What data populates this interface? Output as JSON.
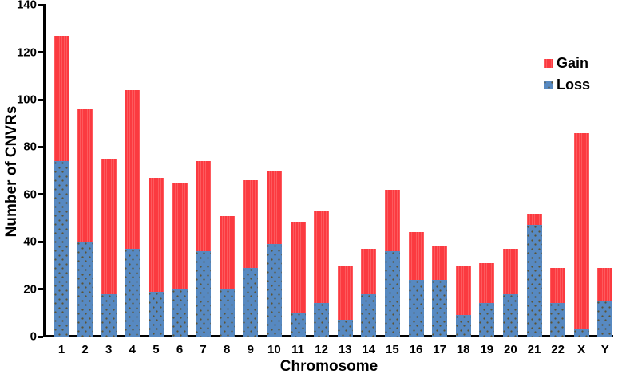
{
  "chart_data": {
    "type": "bar",
    "stacked": true,
    "title": "",
    "xlabel": "Chromosome",
    "ylabel": "Number of CNVRs",
    "categories": [
      "1",
      "2",
      "3",
      "4",
      "5",
      "6",
      "7",
      "8",
      "9",
      "10",
      "11",
      "12",
      "13",
      "14",
      "15",
      "16",
      "17",
      "18",
      "19",
      "20",
      "21",
      "22",
      "X",
      "Y"
    ],
    "series": [
      {
        "name": "Loss",
        "color": "#5789c1",
        "values": [
          74,
          40,
          18,
          37,
          19,
          20,
          36,
          20,
          29,
          39,
          10,
          14,
          7,
          18,
          36,
          24,
          24,
          9,
          14,
          18,
          47,
          14,
          3,
          15
        ]
      },
      {
        "name": "Gain",
        "color": "#fb3a40",
        "values": [
          53,
          56,
          57,
          67,
          48,
          45,
          38,
          31,
          37,
          31,
          38,
          39,
          23,
          19,
          26,
          20,
          14,
          21,
          17,
          19,
          5,
          15,
          83,
          14
        ]
      }
    ],
    "totals": [
      127,
      96,
      75,
      104,
      67,
      65,
      74,
      51,
      66,
      70,
      48,
      53,
      30,
      37,
      62,
      44,
      38,
      30,
      31,
      37,
      52,
      29,
      86,
      29
    ],
    "ylim": [
      0,
      140
    ],
    "yticks": [
      0,
      20,
      40,
      60,
      80,
      100,
      120,
      140
    ],
    "legend_position": "top-right",
    "legend_order": [
      "Gain",
      "Loss"
    ],
    "grid": false,
    "colors": {
      "gain": "#fb3a40",
      "loss": "#5789c1",
      "axis": "#000000",
      "background": "#ffffff"
    }
  }
}
